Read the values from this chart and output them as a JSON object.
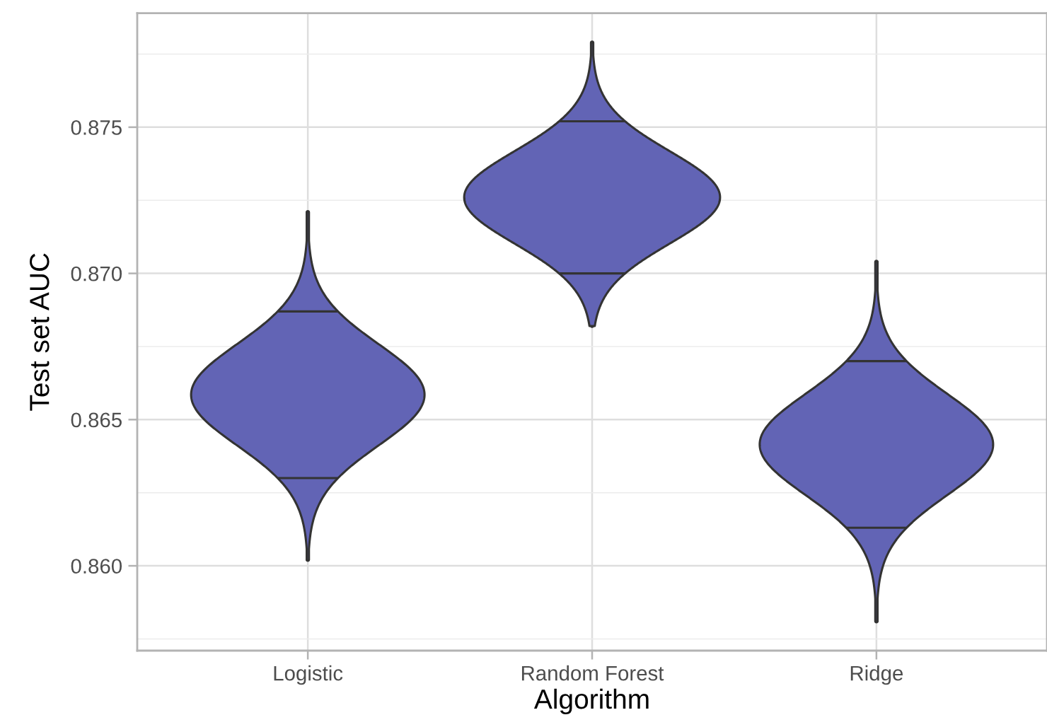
{
  "chart_data": {
    "type": "box",
    "xlabel": "Algorithm",
    "ylabel": "Test set AUC",
    "categories": [
      "Logistic",
      "Random Forest",
      "Ridge"
    ],
    "boxes": [
      {
        "low": 0.8602,
        "q1": 0.863,
        "q3": 0.8687,
        "high": 0.8721
      },
      {
        "low": 0.8682,
        "q1": 0.87,
        "q3": 0.8752,
        "high": 0.8779
      },
      {
        "low": 0.8581,
        "q1": 0.8613,
        "q3": 0.867,
        "high": 0.8704
      }
    ],
    "ylim": [
      0.8571,
      0.8789
    ],
    "yticks": [
      {
        "value": 0.8575,
        "label": null
      },
      {
        "value": 0.86,
        "label": "0.860"
      },
      {
        "value": 0.8625,
        "label": null
      },
      0.865,
      {
        "value": 0.8675,
        "label": null
      },
      {
        "value": 0.87,
        "label": "0.870"
      },
      {
        "value": 0.8725,
        "label": null
      },
      0.875,
      {
        "value": 0.8775,
        "label": null
      }
    ],
    "grid": true
  }
}
